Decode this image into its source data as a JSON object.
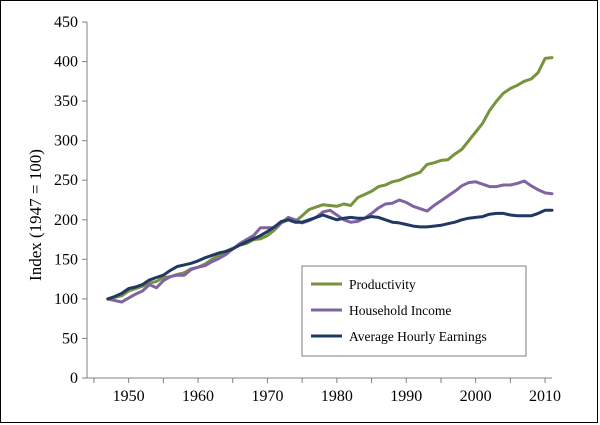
{
  "chart_data": {
    "type": "line",
    "title": "",
    "xlabel": "",
    "ylabel": "Index (1947 = 100)",
    "xlim": [
      1944,
      2011
    ],
    "ylim": [
      0,
      450
    ],
    "x_ticks": [
      "1950",
      "1960",
      "1970",
      "1980",
      "1990",
      "2000",
      "2010"
    ],
    "y_ticks": [
      "0",
      "50",
      "100",
      "150",
      "200",
      "250",
      "300",
      "350",
      "400",
      "450"
    ],
    "grid": false,
    "legend_position": "bottom-right",
    "x": [
      1947,
      1948,
      1949,
      1950,
      1951,
      1952,
      1953,
      1954,
      1955,
      1956,
      1957,
      1958,
      1959,
      1960,
      1961,
      1962,
      1963,
      1964,
      1965,
      1966,
      1967,
      1968,
      1969,
      1970,
      1971,
      1972,
      1973,
      1974,
      1975,
      1976,
      1977,
      1978,
      1979,
      1980,
      1981,
      1982,
      1983,
      1984,
      1985,
      1986,
      1987,
      1988,
      1989,
      1990,
      1991,
      1992,
      1993,
      1994,
      1995,
      1996,
      1997,
      1998,
      1999,
      2000,
      2001,
      2002,
      2003,
      2004,
      2005,
      2006,
      2007,
      2008,
      2009,
      2010,
      2011
    ],
    "series": [
      {
        "name": "Productivity",
        "color": "#77933C",
        "values": [
          100,
          102,
          104,
          110,
          113,
          116,
          120,
          122,
          127,
          128,
          131,
          133,
          138,
          140,
          144,
          150,
          155,
          160,
          164,
          168,
          170,
          175,
          176,
          180,
          187,
          196,
          200,
          198,
          205,
          213,
          216,
          219,
          218,
          217,
          220,
          218,
          228,
          232,
          236,
          242,
          244,
          248,
          250,
          254,
          257,
          260,
          270,
          272,
          275,
          276,
          283,
          289,
          300,
          311,
          322,
          338,
          350,
          360,
          366,
          370,
          375,
          378,
          386,
          404,
          405
        ]
      },
      {
        "name": "Household Income",
        "color": "#8064A2",
        "values": [
          100,
          98,
          96,
          101,
          106,
          110,
          118,
          114,
          123,
          128,
          130,
          130,
          137,
          140,
          142,
          147,
          151,
          156,
          163,
          170,
          175,
          180,
          190,
          190,
          190,
          196,
          203,
          200,
          196,
          199,
          203,
          210,
          212,
          206,
          200,
          197,
          198,
          202,
          208,
          215,
          220,
          221,
          225,
          222,
          217,
          214,
          211,
          218,
          224,
          230,
          236,
          243,
          247,
          248,
          245,
          242,
          242,
          244,
          244,
          246,
          249,
          243,
          238,
          234,
          233
        ]
      },
      {
        "name": "Average Hourly Earnings",
        "color": "#1F3864",
        "values": [
          100,
          103,
          107,
          113,
          115,
          118,
          124,
          127,
          130,
          136,
          141,
          143,
          145,
          148,
          152,
          155,
          158,
          160,
          163,
          168,
          172,
          176,
          180,
          185,
          191,
          198,
          200,
          197,
          197,
          200,
          203,
          206,
          203,
          200,
          202,
          203,
          202,
          202,
          204,
          203,
          200,
          197,
          196,
          194,
          192,
          191,
          191,
          192,
          193,
          195,
          197,
          200,
          202,
          203,
          204,
          207,
          208,
          208,
          206,
          205,
          205,
          205,
          208,
          212,
          212
        ]
      }
    ]
  }
}
